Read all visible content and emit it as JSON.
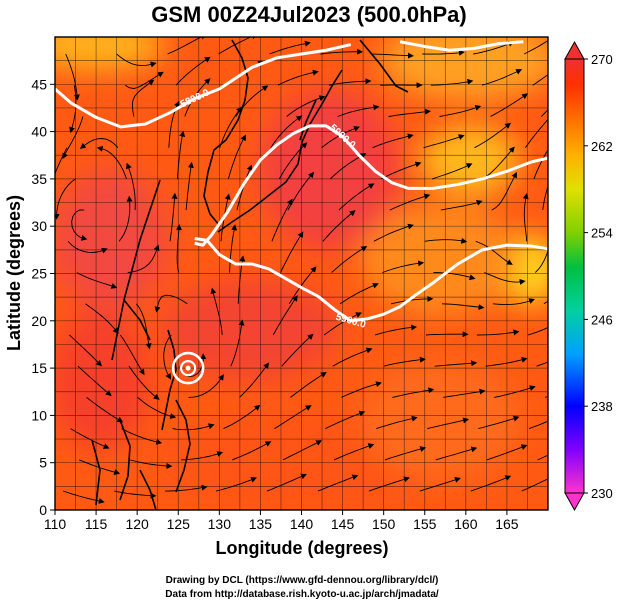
{
  "chart_data": {
    "type": "heatmap",
    "title": "GSM 00Z24Jul2023 (500.0hPa)",
    "xlabel": "Longitude (degrees)",
    "ylabel": "Latitude  (degrees)",
    "xlim": [
      110,
      170
    ],
    "ylim": [
      0,
      50
    ],
    "x_ticks": [
      110,
      115,
      120,
      125,
      130,
      135,
      140,
      145,
      150,
      155,
      160,
      165
    ],
    "y_ticks": [
      0,
      5,
      10,
      15,
      20,
      25,
      30,
      35,
      40,
      45
    ],
    "grid": true,
    "colorbar": {
      "ticks": [
        230,
        238,
        246,
        254,
        262,
        270
      ],
      "range": [
        230,
        270
      ],
      "colors": [
        "#ff33cc",
        "#8000ff",
        "#0000ff",
        "#00a0ff",
        "#00d0a0",
        "#00c040",
        "#80d000",
        "#e0e000",
        "#ffb000",
        "#ff7000",
        "#ff3000",
        "#ee3030"
      ]
    },
    "contours": [
      {
        "label": "5800.0",
        "points": [
          [
            110,
            44.5
          ],
          [
            112,
            43
          ],
          [
            115,
            41.5
          ],
          [
            118,
            40.5
          ],
          [
            121,
            40.8
          ],
          [
            124,
            42
          ],
          [
            127,
            43.5
          ],
          [
            130,
            44.5
          ],
          [
            134,
            46.8
          ],
          [
            137,
            47.8
          ],
          [
            140,
            48.2
          ],
          [
            143,
            48.6
          ],
          [
            146,
            49.2
          ]
        ]
      },
      {
        "label": "5900.0",
        "points": [
          [
            127,
            28.2
          ],
          [
            128,
            28
          ],
          [
            129,
            29
          ],
          [
            131,
            31.5
          ],
          [
            133,
            34.5
          ],
          [
            135,
            37
          ],
          [
            137,
            38.6
          ],
          [
            139,
            39.8
          ],
          [
            141,
            40.6
          ],
          [
            143,
            40.6
          ],
          [
            145,
            39.5
          ],
          [
            147,
            37.5
          ],
          [
            149,
            35.8
          ],
          [
            151,
            34.6
          ],
          [
            153,
            34
          ],
          [
            156,
            34
          ],
          [
            159,
            34.4
          ],
          [
            162,
            35
          ],
          [
            165,
            35.8
          ],
          [
            168,
            36.8
          ],
          [
            170,
            37.2
          ]
        ]
      },
      {
        "label": "5900.0",
        "points": [
          [
            127,
            28.7
          ],
          [
            128.5,
            28.5
          ],
          [
            130,
            27
          ],
          [
            132,
            26
          ],
          [
            134,
            26
          ],
          [
            136,
            25.5
          ],
          [
            138,
            24.5
          ],
          [
            140,
            23.5
          ],
          [
            142,
            22.6
          ],
          [
            144,
            21.2
          ],
          [
            146,
            20
          ],
          [
            148,
            20.2
          ],
          [
            150,
            20.7
          ],
          [
            152,
            21.5
          ],
          [
            154,
            22.8
          ],
          [
            156,
            24
          ],
          [
            159,
            26
          ],
          [
            162,
            27.5
          ],
          [
            165,
            28
          ],
          [
            168,
            27.9
          ],
          [
            170,
            27.6
          ]
        ]
      },
      {
        "label": "",
        "points": [
          [
            152,
            49.5
          ],
          [
            155,
            49
          ],
          [
            158,
            48.6
          ],
          [
            161,
            48.8
          ],
          [
            164,
            49.3
          ],
          [
            167,
            49.5
          ]
        ]
      }
    ],
    "features": {
      "low_center": [
        126.2,
        15.0
      ]
    }
  },
  "credits": {
    "line1": "Drawing by DCL (https://www.gfd-dennou.org/library/dcl/)",
    "line2": "Data from http://database.rish.kyoto-u.ac.jp/arch/jmadata/"
  }
}
